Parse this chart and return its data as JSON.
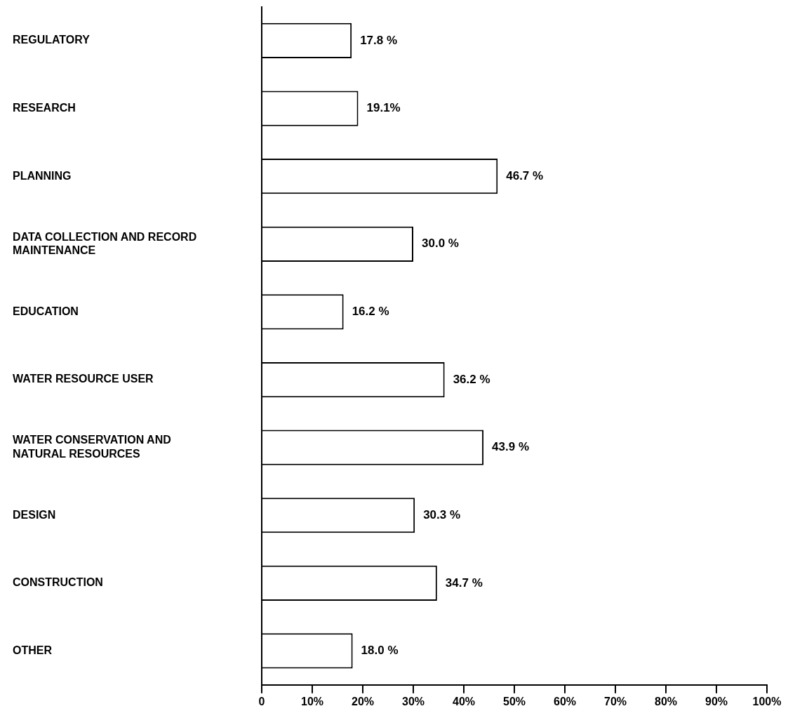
{
  "chart_data": {
    "type": "bar",
    "orientation": "horizontal",
    "categories": [
      "REGULATORY",
      "RESEARCH",
      "PLANNING",
      "DATA COLLECTION AND RECORD MAINTENANCE",
      "EDUCATION",
      "WATER RESOURCE USER",
      "WATER CONSERVATION AND NATURAL RESOURCES",
      "DESIGN",
      "CONSTRUCTION",
      "OTHER"
    ],
    "values": [
      17.8,
      19.1,
      46.7,
      30.0,
      16.2,
      36.2,
      43.9,
      30.3,
      34.7,
      18.0
    ],
    "value_labels": [
      "17.8 %",
      "19.1%",
      "46.7 %",
      "30.0 %",
      "16.2 %",
      "36.2 %",
      "43.9 %",
      "30.3 %",
      "34.7 %",
      "18.0 %"
    ],
    "color": "#ffffff",
    "xlim": [
      0,
      100
    ],
    "xticks": [
      0,
      {
        "value": 10,
        "label": "10%"
      },
      {
        "value": 20,
        "label": "20%"
      },
      {
        "value": 30,
        "label": "30%"
      },
      {
        "value": 40,
        "label": "40%"
      },
      {
        "value": 50,
        "label": "50%"
      },
      {
        "value": 60,
        "label": "60%"
      },
      {
        "value": 70,
        "label": "70%"
      },
      {
        "value": 80,
        "label": "80%"
      },
      {
        "value": 90,
        "label": "90%"
      },
      {
        "value": 100,
        "label": "100%"
      }
    ],
    "grid": false,
    "legend": false
  }
}
